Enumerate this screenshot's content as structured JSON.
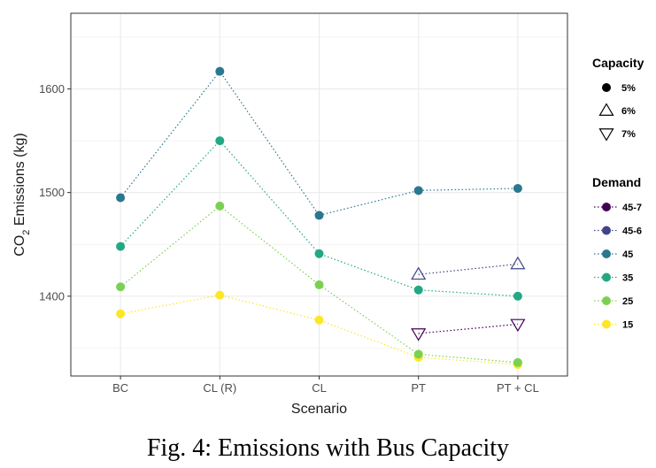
{
  "chart_data": {
    "type": "line",
    "categories": [
      "BC",
      "CL (R)",
      "CL",
      "PT",
      "PT + CL"
    ],
    "xlabel": "Scenario",
    "ylabel_main": "CO",
    "ylabel_sub": "2",
    "ylabel_rest": " Emissions (kg)",
    "ylim": [
      1323,
      1673
    ],
    "yticks": [
      1400,
      1500,
      1600
    ],
    "grid": true,
    "legend_position": "right",
    "line_style": "dotted",
    "series": [
      {
        "demand": "15",
        "capacity": "5%",
        "color": "#fde725",
        "values": [
          1383,
          1401,
          1377,
          1341,
          1334
        ]
      },
      {
        "demand": "25",
        "capacity": "5%",
        "color": "#7ad151",
        "values": [
          1409,
          1487,
          1411,
          1344,
          1336
        ]
      },
      {
        "demand": "35",
        "capacity": "5%",
        "color": "#22a884",
        "values": [
          1448,
          1550,
          1441,
          1406,
          1400
        ]
      },
      {
        "demand": "45",
        "capacity": "5%",
        "color": "#2a788e",
        "values": [
          1495,
          1617,
          1478,
          1502,
          1504
        ]
      },
      {
        "demand": "45-6",
        "capacity": "6%",
        "color": "#414487",
        "values": [
          null,
          null,
          null,
          1421,
          1431
        ]
      },
      {
        "demand": "45-7",
        "capacity": "7%",
        "color": "#440154",
        "values": [
          null,
          null,
          null,
          1364,
          1373
        ]
      }
    ],
    "legend_capacity": {
      "title": "Capacity",
      "items": [
        {
          "label": "5%",
          "shape": "circle"
        },
        {
          "label": "6%",
          "shape": "triangle-up"
        },
        {
          "label": "7%",
          "shape": "triangle-down"
        }
      ]
    },
    "legend_demand": {
      "title": "Demand",
      "items": [
        {
          "label": "45-7",
          "color": "#440154"
        },
        {
          "label": "45-6",
          "color": "#414487"
        },
        {
          "label": "45",
          "color": "#2a788e"
        },
        {
          "label": "35",
          "color": "#22a884"
        },
        {
          "label": "25",
          "color": "#7ad151"
        },
        {
          "label": "15",
          "color": "#fde725"
        }
      ]
    }
  },
  "caption": "Fig. 4: Emissions with Bus Capacity",
  "colors": {
    "grid": "#ebebeb",
    "panel_border": "#333333",
    "tick_text": "#4d4d4d"
  }
}
